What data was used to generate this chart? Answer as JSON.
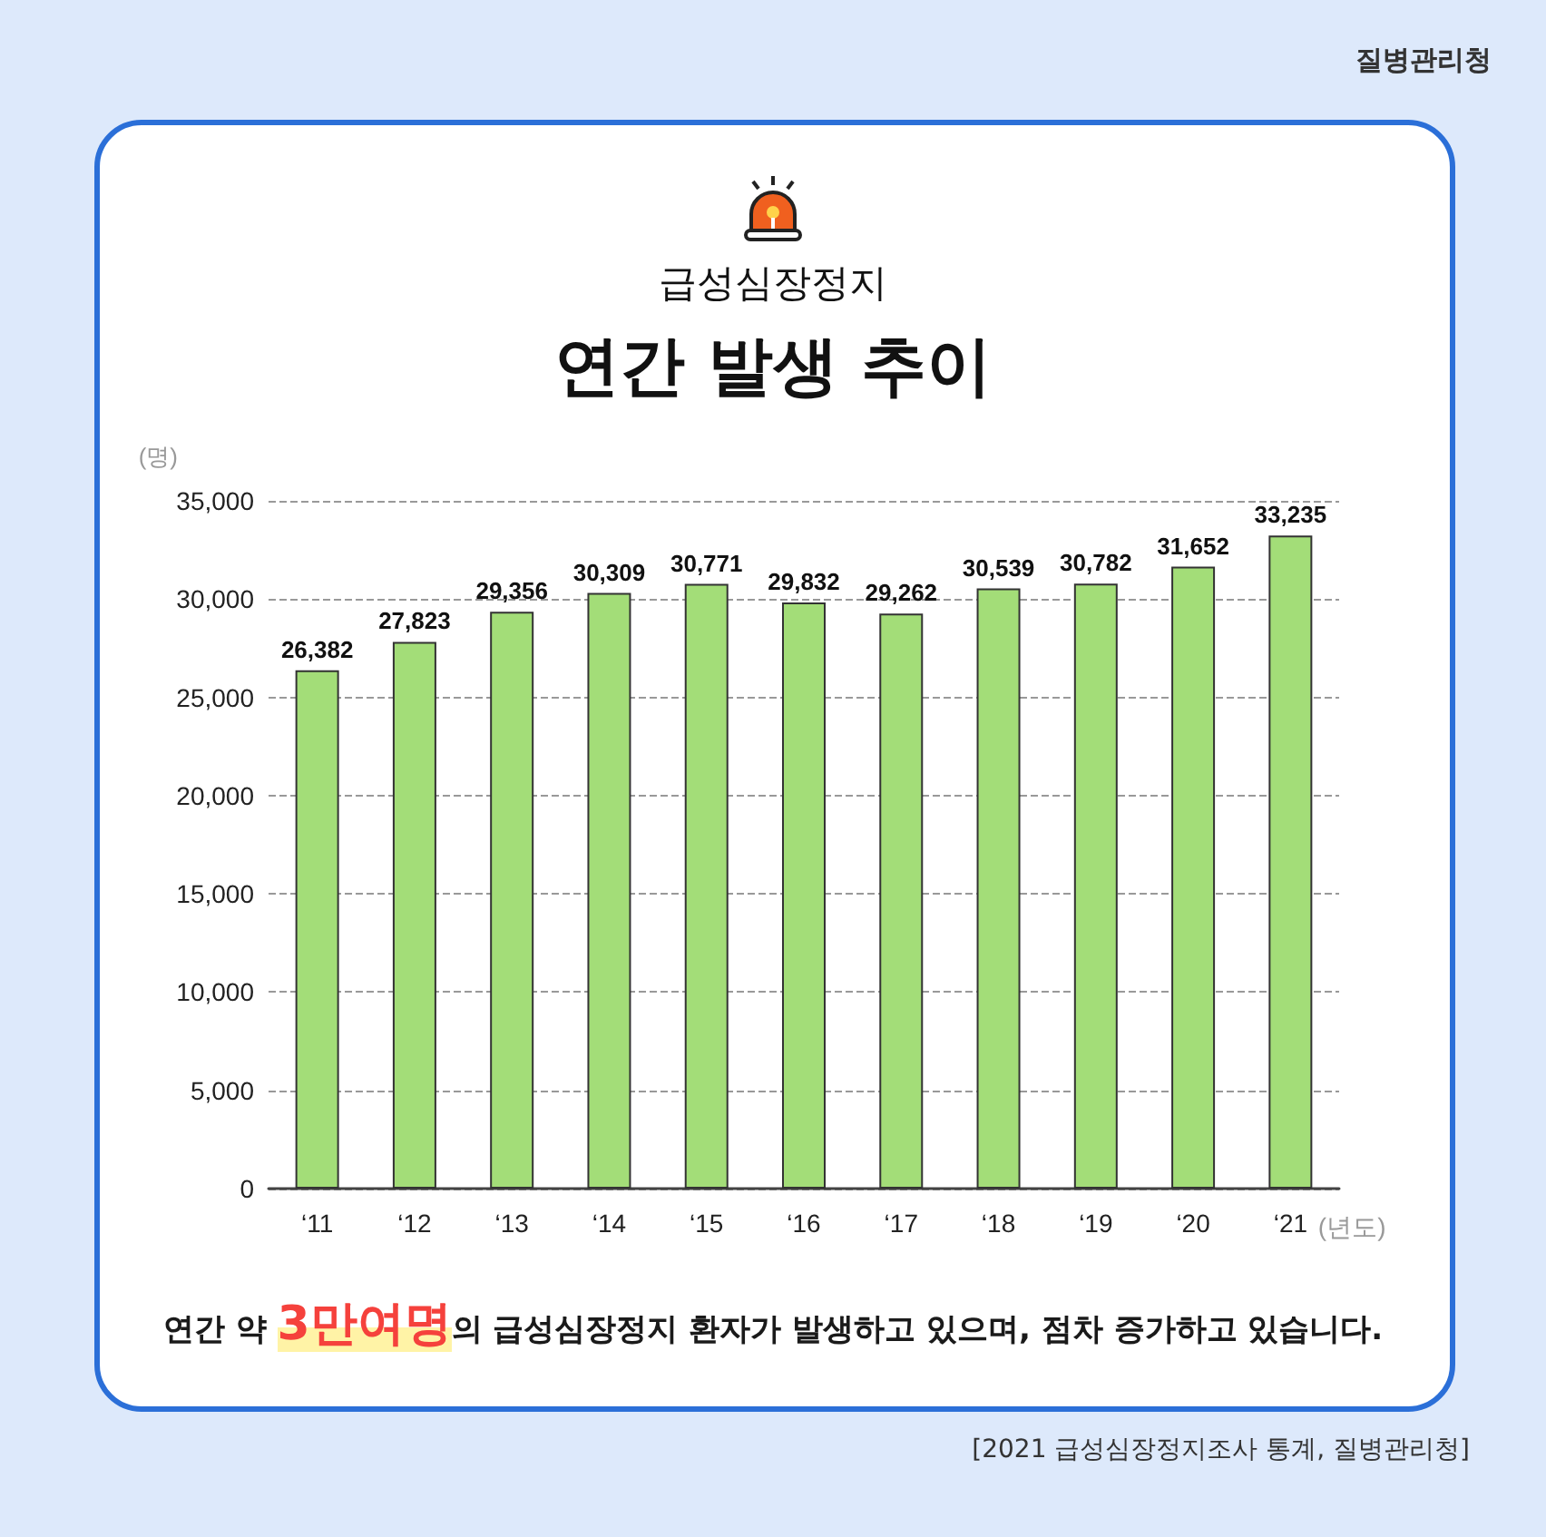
{
  "chart_data": {
    "type": "bar",
    "subtitle": "급성심장정지",
    "title": "연간 발생 추이",
    "ylabel": "(명)",
    "xlabel": "(년도)",
    "categories": [
      "‘11",
      "‘12",
      "‘13",
      "‘14",
      "‘15",
      "‘16",
      "‘17",
      "‘18",
      "‘19",
      "‘20",
      "‘21"
    ],
    "values": [
      26382,
      27823,
      29356,
      30309,
      30771,
      29832,
      29262,
      30539,
      30782,
      31652,
      33235
    ],
    "value_labels": [
      "26,382",
      "27,823",
      "29,356",
      "30,309",
      "30,771",
      "29,832",
      "29,262",
      "30,539",
      "30,782",
      "31,652",
      "33,235"
    ],
    "color": "#a3dd78",
    "ylim": [
      0,
      35000
    ],
    "yticks": [
      0,
      {
        "value": 5000,
        "label": "5,000"
      },
      {
        "value": 10000,
        "label": "10,000"
      },
      {
        "value": 15000,
        "label": "15,000"
      },
      {
        "value": 20000,
        "label": "20,000"
      },
      {
        "value": 25000,
        "label": "25,000"
      },
      {
        "value": 30000,
        "label": "30,000"
      },
      {
        "value": 35000,
        "label": "35,000"
      }
    ],
    "grid": "y",
    "line_style": "dashed",
    "annotations": [
      "연간 약 ",
      "3만여명",
      "의 급성심장정지 환자가 발생하고 있으며, 점차 증가하고 있습니다.",
      "[2021 급성심장정지조사 통계, 질병관리청]",
      "질병관리청"
    ]
  }
}
